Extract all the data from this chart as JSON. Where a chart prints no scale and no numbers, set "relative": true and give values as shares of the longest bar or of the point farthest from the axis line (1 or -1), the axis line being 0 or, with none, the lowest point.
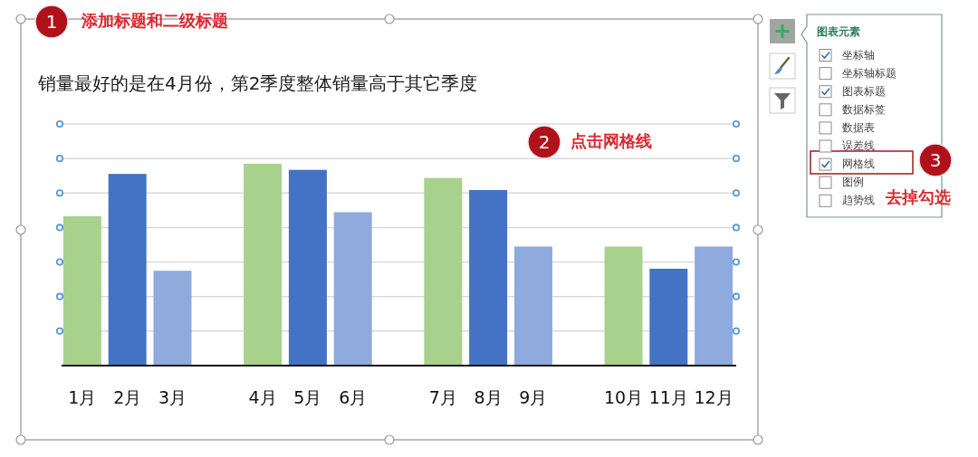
{
  "chart_data": {
    "type": "bar",
    "title": "销量最好的是在4月份，第2季度整体销量高于其它季度",
    "categories": [
      "1月",
      "2月",
      "3月",
      null,
      "4月",
      "5月",
      "6月",
      null,
      "7月",
      "8月",
      "9月",
      null,
      "10月",
      "11月",
      "12月"
    ],
    "values": [
      0.74,
      0.95,
      0.47,
      null,
      1,
      0.97,
      0.76,
      null,
      0.93,
      0.87,
      0.59,
      null,
      0.59,
      0.48,
      0.59
    ],
    "colors": [
      "#a9d18e",
      "#4472c4",
      "#8faadc",
      null,
      "#a9d18e",
      "#4472c4",
      "#8faadc",
      null,
      "#a9d18e",
      "#4472c4",
      "#8faadc",
      null,
      "#a9d18e",
      "#4472c4",
      "#8faadc"
    ],
    "relative": true,
    "grid": true,
    "annotations": [
      "1",
      "添加标题和二级标题",
      "2",
      "点击网格线",
      "3",
      "去掉勾选",
      "图表元素",
      "坐标轴",
      "坐标轴标题",
      "图表标题",
      "数据标签",
      "数据表",
      "误差线",
      "网格线",
      "图例",
      "趋势线"
    ]
  }
}
